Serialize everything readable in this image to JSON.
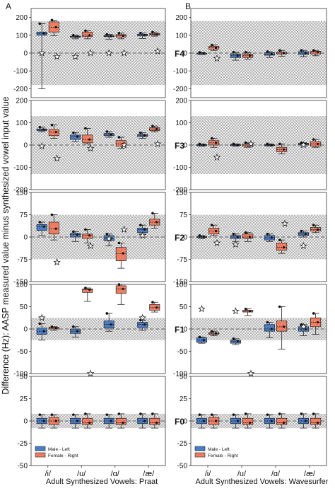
{
  "figure": {
    "panel_labels": [
      "A",
      "B"
    ],
    "ylabel": "Difference (Hz): AASP measured value minus synthesized vowel input value",
    "xlabel_left": "Adult Synthesized Vowels: Praat",
    "xlabel_right": "Adult Synthesized Vowels: Wavesurfer",
    "legend": [
      "Male - Left",
      "Female - Right"
    ]
  },
  "colors": {
    "male": "#4a7cc4",
    "female": "#ee7d62",
    "shade": "#d9d9d9"
  },
  "chart_data": {
    "type": "box",
    "categories": [
      "/i/",
      "/u/",
      "/ɑ/",
      "/æ/"
    ],
    "series": [
      {
        "name": "Male - Left"
      },
      {
        "name": "Female - Right"
      }
    ],
    "rows": [
      {
        "formant": "F4",
        "ylim": [
          -250,
          250
        ],
        "yticks": [
          -200,
          -100,
          0,
          100,
          200
        ],
        "band": 180,
        "praat": {
          "male": [
            {
              "q": [
                -200,
                100,
                110,
                118,
                165
              ]
            },
            {
              "q": [
                80,
                88,
                92,
                95,
                100
              ]
            },
            {
              "q": [
                78,
                92,
                95,
                100,
                105
              ]
            },
            {
              "q": [
                82,
                96,
                100,
                106,
                112
              ]
            }
          ],
          "female": [
            {
              "q": [
                98,
                118,
                145,
                175,
                185
              ]
            },
            {
              "q": [
                80,
                92,
                100,
                118,
                125
              ]
            },
            {
              "q": [
                80,
                90,
                97,
                104,
                112
              ]
            },
            {
              "q": [
                95,
                100,
                105,
                110,
                118
              ]
            }
          ],
          "stars": [
            [
              0,
              0
            ],
            [
              -8,
              -20
            ],
            [
              0,
              -20
            ],
            [
              0,
              0
            ],
            [
              5,
              0
            ],
            [
              0,
              0
            ],
            [
              8,
              10
            ]
          ],
          "star_cats": [
            0,
            0.45,
            1,
            1.45,
            2,
            2.45,
            3.45
          ]
        },
        "wave": {
          "male": [
            {
              "q": [
                -8,
                -4,
                -2,
                0,
                4
              ]
            },
            {
              "q": [
                -40,
                -25,
                -15,
                -5,
                5
              ]
            },
            {
              "q": [
                -25,
                -12,
                -5,
                2,
                8
              ]
            },
            {
              "q": [
                -20,
                -8,
                0,
                8,
                15
              ]
            }
          ],
          "female": [
            {
              "q": [
                15,
                22,
                30,
                38,
                45
              ]
            },
            {
              "q": [
                -35,
                -25,
                -15,
                -5,
                5
              ]
            },
            {
              "q": [
                -18,
                -5,
                0,
                5,
                15
              ]
            },
            {
              "q": [
                -15,
                -5,
                5,
                10,
                15
              ]
            }
          ],
          "stars": [
            [
              0,
              -30
            ]
          ],
          "star_cats": [
            0.45
          ]
        }
      },
      {
        "formant": "F3",
        "ylim": [
          -200,
          200
        ],
        "yticks": [
          -200,
          -100,
          0,
          100,
          200
        ],
        "band": 130,
        "praat": {
          "male": [
            {
              "q": [
                60,
                65,
                70,
                72,
                80
              ]
            },
            {
              "q": [
                15,
                25,
                38,
                45,
                55
              ]
            },
            {
              "q": [
                35,
                42,
                48,
                52,
                60
              ]
            },
            {
              "q": [
                30,
                38,
                42,
                48,
                55
              ]
            }
          ],
          "female": [
            {
              "q": [
                30,
                42,
                58,
                70,
                90
              ]
            },
            {
              "q": [
                5,
                10,
                25,
                45,
                75
              ]
            },
            {
              "q": [
                -15,
                -5,
                5,
                20,
                35
              ]
            },
            {
              "q": [
                60,
                65,
                72,
                78,
                85
              ]
            }
          ],
          "stars": [
            [
              0,
              -5
            ],
            [
              0,
              -60
            ],
            [
              0,
              -15
            ],
            [
              0,
              0
            ],
            [
              0,
              5
            ]
          ],
          "star_cats": [
            0,
            0.45,
            1.45,
            2.45,
            3.45
          ]
        },
        "wave": {
          "male": [
            {
              "q": [
                -5,
                -2,
                0,
                2,
                5
              ]
            },
            {
              "q": [
                -5,
                -2,
                0,
                3,
                5
              ]
            },
            {
              "q": [
                -5,
                -2,
                0,
                2,
                5
              ]
            },
            {
              "q": [
                -5,
                0,
                5,
                8,
                10
              ]
            }
          ],
          "female": [
            {
              "q": [
                -10,
                0,
                10,
                20,
                30
              ]
            },
            {
              "q": [
                -10,
                -5,
                0,
                5,
                10
              ]
            },
            {
              "q": [
                -40,
                -30,
                -20,
                -10,
                5
              ]
            },
            {
              "q": [
                -10,
                -5,
                5,
                15,
                25
              ]
            }
          ],
          "stars": [
            [
              0,
              -55
            ],
            [
              0,
              5
            ],
            [
              0,
              0
            ]
          ],
          "star_cats": [
            0.45,
            1.45,
            3
          ]
        }
      },
      {
        "formant": "F2",
        "ylim": [
          -150,
          150
        ],
        "yticks": [
          -150,
          -75,
          0,
          75,
          150
        ],
        "band": 75,
        "praat": {
          "male": [
            {
              "q": [
                5,
                22,
                35,
                42,
                50
              ]
            },
            {
              "q": [
                -15,
                0,
                8,
                12,
                18
              ]
            },
            {
              "q": [
                -30,
                -12,
                -5,
                5,
                10
              ]
            },
            {
              "q": [
                10,
                15,
                25,
                30,
                40
              ]
            }
          ],
          "female": [
            {
              "q": [
                -10,
                10,
                28,
                50,
                75
              ]
            },
            {
              "q": [
                -20,
                -5,
                5,
                10,
                25
              ]
            },
            {
              "q": [
                -105,
                -80,
                -55,
                -35,
                -20
              ]
            },
            {
              "q": [
                30,
                40,
                50,
                60,
                80
              ]
            }
          ],
          "stars": [
            [
              0,
              -85
            ],
            [
              0,
              -30
            ],
            [
              0,
              -5
            ],
            [
              0,
              25
            ],
            [
              0,
              5
            ]
          ],
          "star_cats": [
            0.45,
            1.45,
            2,
            2.45,
            3
          ]
        },
        "wave": {
          "male": [
            {
              "q": [
                -5,
                -2,
                0,
                2,
                5
              ]
            },
            {
              "q": [
                -15,
                -5,
                0,
                5,
                10
              ]
            },
            {
              "q": [
                -15,
                -10,
                -2,
                5,
                10
              ]
            },
            {
              "q": [
                0,
                5,
                10,
                15,
                20
              ]
            }
          ],
          "female": [
            {
              "q": [
                5,
                10,
                20,
                30,
                40
              ]
            },
            {
              "q": [
                -15,
                -5,
                0,
                10,
                15
              ]
            },
            {
              "q": [
                -55,
                -45,
                -35,
                -20,
                -10
              ]
            },
            {
              "q": [
                15,
                20,
                25,
                32,
                40
              ]
            }
          ],
          "stars": [
            [
              0,
              -20
            ],
            [
              0,
              -25
            ],
            [
              0,
              45
            ],
            [
              0,
              -30
            ]
          ],
          "star_cats": [
            0.45,
            1,
            2.45,
            3
          ]
        }
      },
      {
        "formant": "F1",
        "ylim": [
          -100,
          100
        ],
        "yticks": [
          -100,
          -50,
          0,
          50,
          100
        ],
        "band": 25,
        "praat": {
          "male": [
            {
              "q": [
                -25,
                -12,
                -5,
                2,
                12
              ]
            },
            {
              "q": [
                -18,
                -10,
                -5,
                0,
                5
              ]
            },
            {
              "q": [
                -5,
                2,
                10,
                18,
                35
              ]
            },
            {
              "q": [
                -3,
                3,
                10,
                15,
                20
              ]
            }
          ],
          "female": [
            {
              "q": [
                -3,
                0,
                2,
                4,
                5
              ]
            },
            {
              "q": [
                62,
                82,
                88,
                90,
                92
              ]
            },
            {
              "q": [
                55,
                80,
                90,
                97,
                100
              ]
            },
            {
              "q": [
                38,
                42,
                48,
                55,
                60
              ]
            }
          ],
          "stars": [
            [
              0,
              25
            ],
            [
              0,
              -100
            ],
            [
              0,
              25
            ]
          ],
          "star_cats": [
            0,
            1.45,
            3
          ]
        },
        "wave": {
          "male": [
            {
              "q": [
                -32,
                -30,
                -25,
                -20,
                -18
              ]
            },
            {
              "q": [
                -35,
                -32,
                -28,
                -25,
                -22
              ]
            },
            {
              "q": [
                -20,
                -5,
                0,
                10,
                15
              ]
            },
            {
              "q": [
                -15,
                -5,
                0,
                5,
                10
              ]
            }
          ],
          "female": [
            {
              "q": [
                -15,
                -12,
                -10,
                -8,
                -5
              ]
            },
            {
              "q": [
                30,
                38,
                40,
                42,
                45
              ]
            },
            {
              "q": [
                -45,
                -5,
                5,
                18,
                50
              ]
            },
            {
              "q": [
                -12,
                5,
                15,
                25,
                35
              ]
            }
          ],
          "stars": [
            [
              0,
              45
            ],
            [
              0,
              40
            ],
            [
              0,
              -100
            ],
            [
              0,
              5
            ]
          ],
          "star_cats": [
            0,
            1,
            1.45,
            3
          ]
        }
      },
      {
        "formant": "F0",
        "ylim": [
          -50,
          50
        ],
        "yticks": [
          -50,
          -25,
          0,
          25,
          50
        ],
        "band": 8,
        "praat": {
          "male": [
            {
              "q": [
                -8,
                -3,
                0,
                3,
                7
              ]
            },
            {
              "q": [
                -8,
                -3,
                0,
                3,
                7
              ]
            },
            {
              "q": [
                -8,
                -3,
                0,
                3,
                7
              ]
            },
            {
              "q": [
                -8,
                -3,
                0,
                3,
                8
              ]
            }
          ],
          "female": [
            {
              "q": [
                -8,
                -4,
                0,
                4,
                7
              ]
            },
            {
              "q": [
                -8,
                -4,
                -2,
                3,
                8
              ]
            },
            {
              "q": [
                -8,
                -4,
                -2,
                3,
                8
              ]
            },
            {
              "q": [
                -8,
                -4,
                -2,
                3,
                8
              ]
            }
          ],
          "stars": [],
          "star_cats": []
        },
        "wave": {
          "male": [
            {
              "q": [
                -8,
                -3,
                0,
                3,
                7
              ]
            },
            {
              "q": [
                -8,
                -3,
                0,
                3,
                7
              ]
            },
            {
              "q": [
                -8,
                -3,
                0,
                3,
                7
              ]
            },
            {
              "q": [
                -8,
                -3,
                0,
                3,
                8
              ]
            }
          ],
          "female": [
            {
              "q": [
                -8,
                -4,
                0,
                4,
                7
              ]
            },
            {
              "q": [
                -8,
                -4,
                -2,
                3,
                8
              ]
            },
            {
              "q": [
                -8,
                -4,
                -2,
                3,
                8
              ]
            },
            {
              "q": [
                -8,
                -4,
                -2,
                3,
                8
              ]
            }
          ],
          "stars": [],
          "star_cats": []
        }
      }
    ]
  }
}
